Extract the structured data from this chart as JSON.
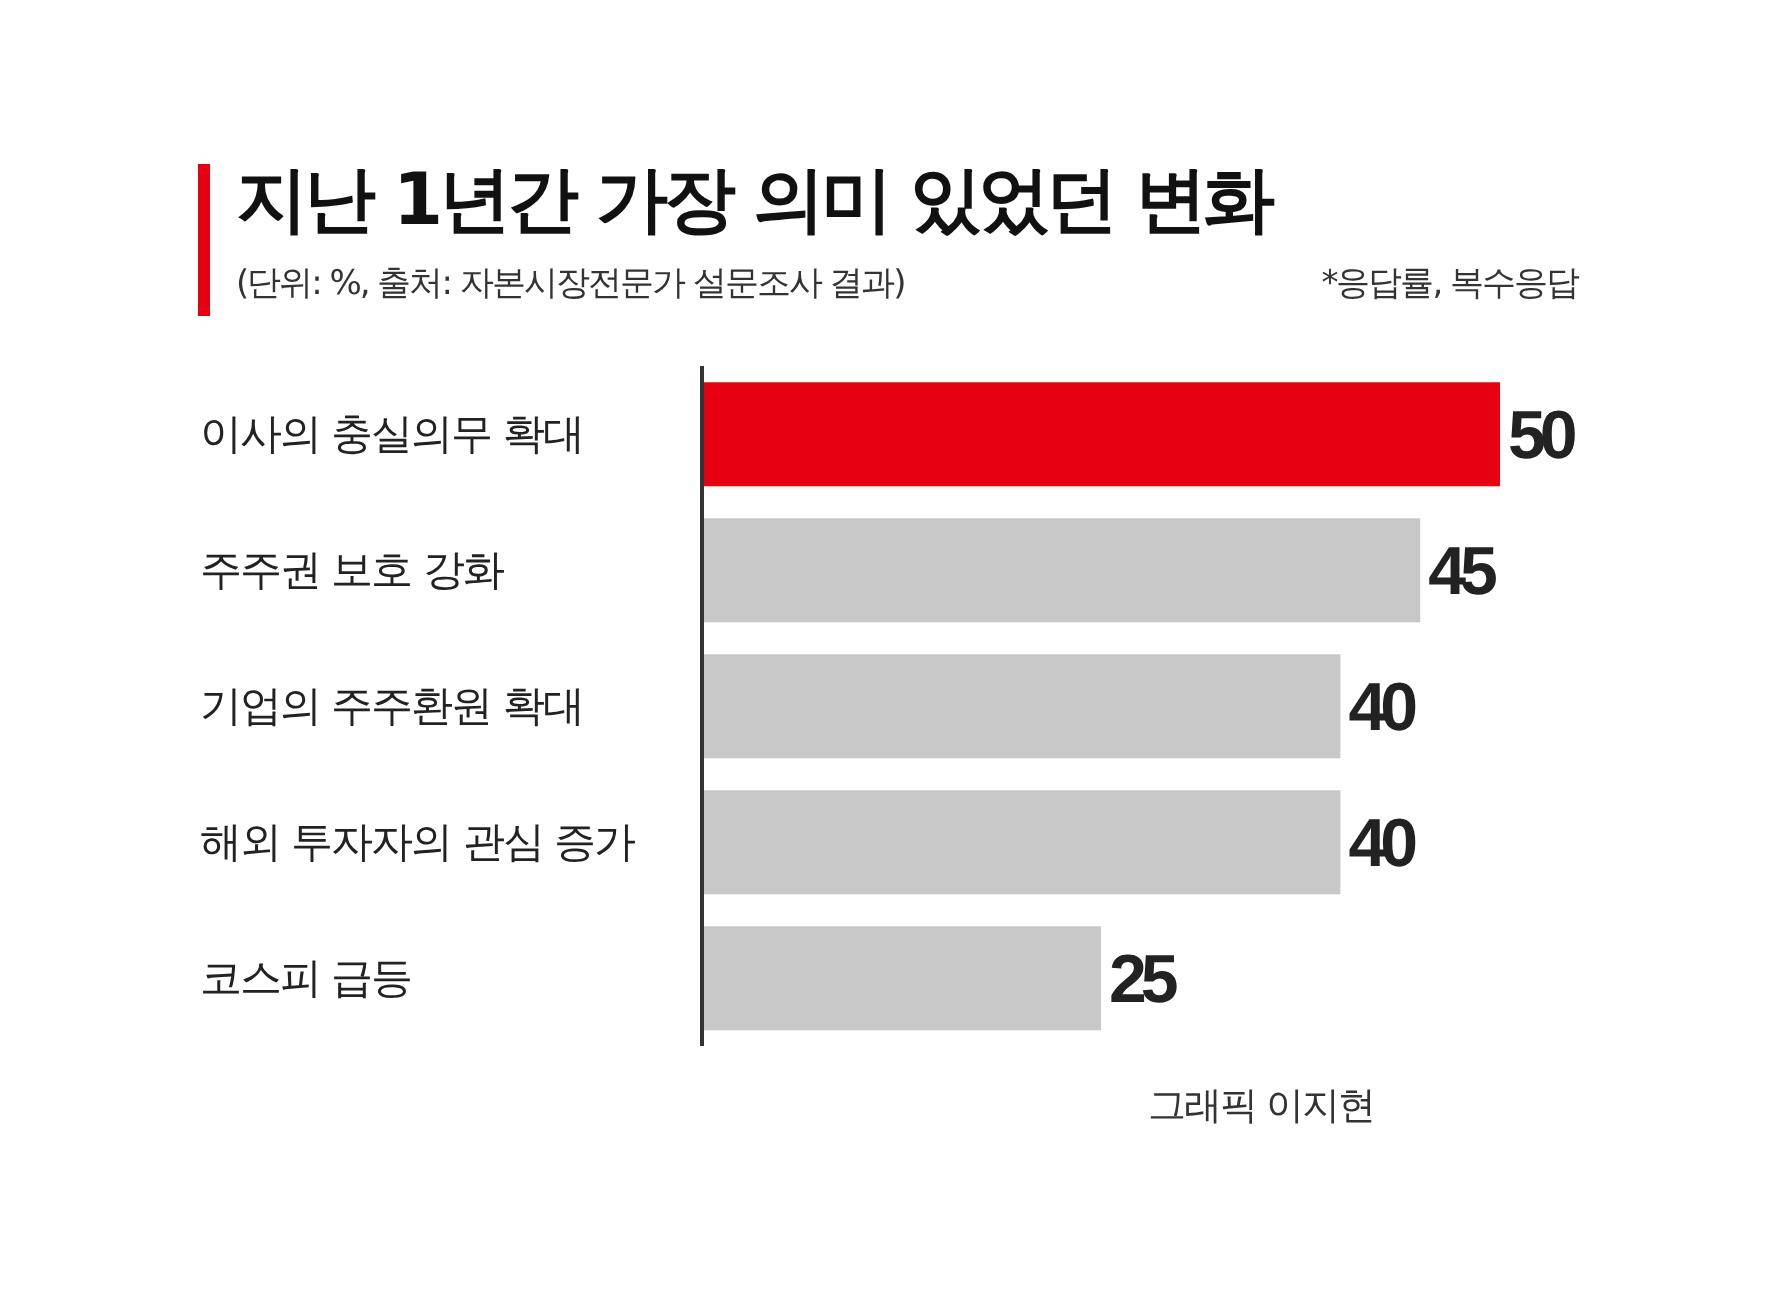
{
  "chart_data": {
    "type": "bar",
    "orientation": "horizontal",
    "title": "지난 1년간 가장 의미 있었던 변화",
    "subtitle": "(단위: %, 출처: 자본시장전문가 설문조사 결과)",
    "categories": [
      "이사의 충실의무 확대",
      "주주권 보호 강화",
      "기업의 주주환원 확대",
      "해외 투자자의 관심 증가",
      "코스피 급등"
    ],
    "values": [
      50,
      45,
      40,
      40,
      25
    ],
    "colors": [
      "#e60012",
      "#c8c8c8",
      "#c8c8c8",
      "#c8c8c8",
      "#c8c8c8"
    ],
    "data_labels": true,
    "annotations": [
      "*응답률, 복수응답",
      "그래픽 이지현"
    ]
  }
}
